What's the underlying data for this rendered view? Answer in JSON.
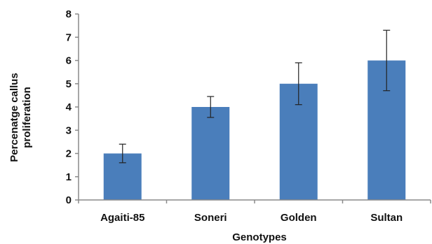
{
  "chart_data": {
    "type": "bar",
    "categories": [
      "Agaiti-85",
      "Soneri",
      "Golden",
      "Sultan"
    ],
    "series": [
      {
        "values": [
          2.0,
          4.0,
          5.0,
          6.0
        ],
        "error": [
          0.4,
          0.45,
          0.9,
          1.3
        ],
        "color": "#4a7ebb"
      }
    ],
    "xlabel": "Genotypes",
    "ylabel_lines": [
      "Percenatge callus",
      "proliferation"
    ],
    "ylim": [
      0,
      8
    ],
    "yticks": [
      "0",
      "1",
      "2",
      "3",
      "4",
      "5",
      "6",
      "7",
      "8"
    ],
    "grid": false,
    "legend": "none"
  }
}
